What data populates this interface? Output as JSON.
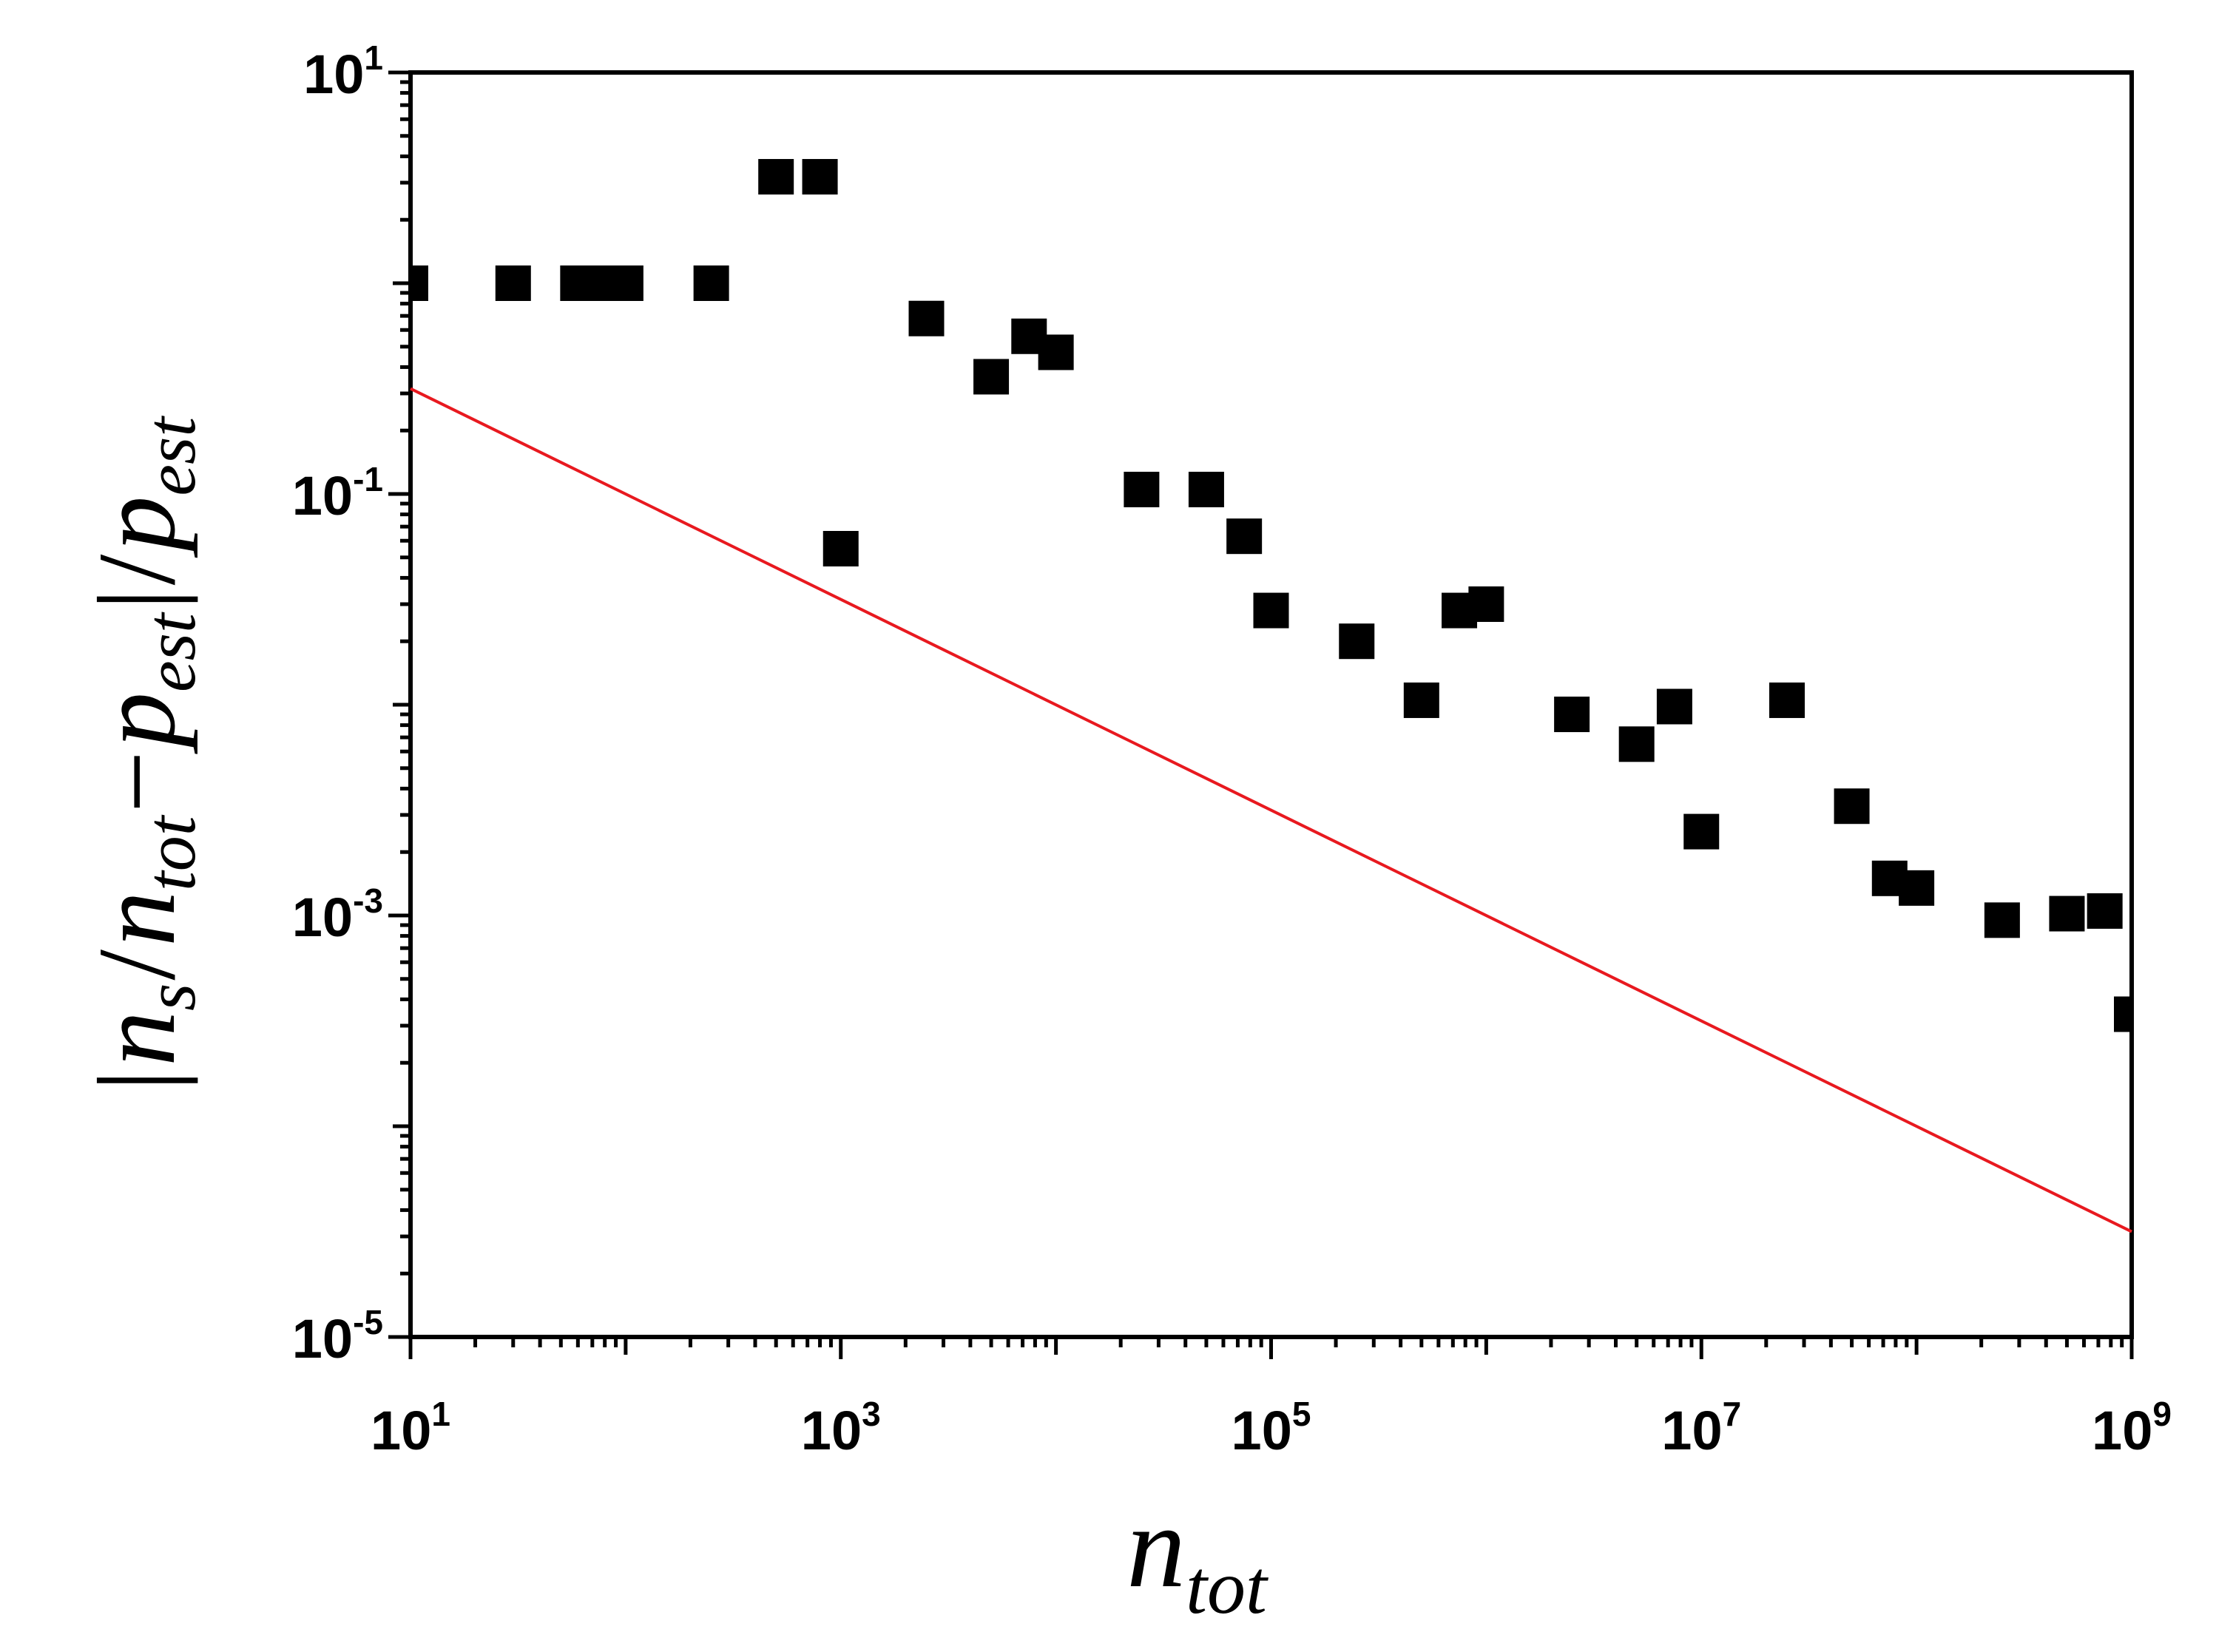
{
  "chart_data": {
    "type": "scatter",
    "xscale": "log",
    "yscale": "log",
    "xlim": [
      10,
      1000000000
    ],
    "ylim": [
      1e-05,
      10
    ],
    "x_ticks": [
      {
        "base": "10",
        "exp": "1",
        "value": 10
      },
      {
        "base": "10",
        "exp": "3",
        "value": 1000
      },
      {
        "base": "10",
        "exp": "5",
        "value": 100000
      },
      {
        "base": "10",
        "exp": "7",
        "value": 10000000
      },
      {
        "base": "10",
        "exp": "9",
        "value": 1000000000
      }
    ],
    "y_ticks": [
      {
        "base": "10",
        "exp": "1",
        "value": 10
      },
      {
        "base": "10",
        "exp": "-1",
        "value": 0.1
      },
      {
        "base": "10",
        "exp": "-3",
        "value": 0.001
      },
      {
        "base": "10",
        "exp": "-5",
        "value": 1e-05
      }
    ],
    "xlabel": {
      "main": "n",
      "sub": "tot"
    },
    "ylabel": {
      "bar1": "|",
      "n1": "n",
      "sub1": "s",
      "slash1": "/",
      "n2": "n",
      "sub2": "tot",
      "minus": "−",
      "p1": "p",
      "sub3": "est",
      "bar2": "|",
      "slash2": "/",
      "p2": "p",
      "sub4": "est"
    },
    "grid": false,
    "points": [
      {
        "x": 10,
        "y": 1.0
      },
      {
        "x": 30,
        "y": 1.0
      },
      {
        "x": 60,
        "y": 1.0
      },
      {
        "x": 80,
        "y": 1.0
      },
      {
        "x": 100,
        "y": 1.0
      },
      {
        "x": 250,
        "y": 1.0
      },
      {
        "x": 500,
        "y": 3.2
      },
      {
        "x": 800,
        "y": 3.2
      },
      {
        "x": 1000,
        "y": 0.055
      },
      {
        "x": 2500,
        "y": 0.68
      },
      {
        "x": 5000,
        "y": 0.36
      },
      {
        "x": 7500,
        "y": 0.56
      },
      {
        "x": 10000,
        "y": 0.47
      },
      {
        "x": 25000,
        "y": 0.105
      },
      {
        "x": 50000,
        "y": 0.105
      },
      {
        "x": 75000,
        "y": 0.063
      },
      {
        "x": 100000,
        "y": 0.028
      },
      {
        "x": 250000,
        "y": 0.02
      },
      {
        "x": 500000,
        "y": 0.0105
      },
      {
        "x": 750000,
        "y": 0.028
      },
      {
        "x": 1000000,
        "y": 0.03
      },
      {
        "x": 2500000,
        "y": 0.009
      },
      {
        "x": 5000000,
        "y": 0.0065
      },
      {
        "x": 7500000,
        "y": 0.0098
      },
      {
        "x": 10000000,
        "y": 0.0025
      },
      {
        "x": 25000000,
        "y": 0.0105
      },
      {
        "x": 50000000,
        "y": 0.0033
      },
      {
        "x": 75000000,
        "y": 0.0015
      },
      {
        "x": 100000000,
        "y": 0.00135
      },
      {
        "x": 250000000,
        "y": 0.00095
      },
      {
        "x": 500000000,
        "y": 0.00102
      },
      {
        "x": 750000000,
        "y": 0.00105
      },
      {
        "x": 1000000000,
        "y": 0.00034
      }
    ],
    "reference_line": {
      "x": [
        10,
        1000000000
      ],
      "y": [
        0.316,
        3.16e-05
      ]
    },
    "colors": {
      "points": "#000000",
      "line": "#e8191f",
      "axes": "#000000"
    }
  }
}
